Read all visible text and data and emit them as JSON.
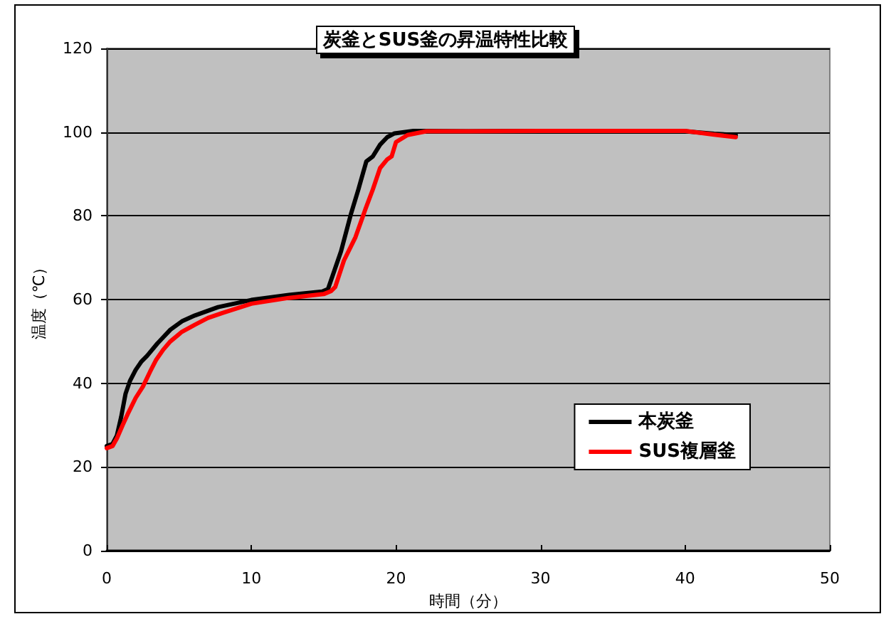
{
  "chart_data": {
    "type": "line",
    "title": "炭釜とSUS釜の昇温特性比較",
    "xlabel": "時間（分）",
    "ylabel": "温度（℃）",
    "series": [
      {
        "name": "本炭釜",
        "color": "#000000",
        "x": [
          0,
          0.4,
          0.7,
          1.0,
          1.3,
          1.6,
          2.0,
          2.4,
          2.8,
          3.5,
          4.4,
          5.2,
          6.1,
          7.7,
          10,
          12.6,
          14.9,
          15.3,
          15.75,
          16.2,
          16.9,
          17.4,
          17.95,
          18.4,
          18.9,
          19.4,
          19.9,
          21.2,
          25,
          30,
          35,
          40,
          42,
          43.5
        ],
        "values": [
          25,
          25.5,
          27.5,
          32,
          37.5,
          40.5,
          43.2,
          45.2,
          46.6,
          49.5,
          52.8,
          54.8,
          56.2,
          58.2,
          59.9,
          61.1,
          61.9,
          62.5,
          67,
          71.5,
          80.6,
          86.3,
          93,
          94.2,
          97,
          98.8,
          99.7,
          100.3,
          100.2,
          100.3,
          100.3,
          100.2,
          99.6,
          99.3
        ]
      },
      {
        "name": "SUS複層釜",
        "color": "#ff0000",
        "x": [
          0,
          0.4,
          0.7,
          1.1,
          1.5,
          2.0,
          2.5,
          3.0,
          3.4,
          3.9,
          4.4,
          5.2,
          6.1,
          7,
          8,
          10,
          12.6,
          15,
          15.5,
          15.8,
          16.4,
          17.2,
          17.9,
          18.4,
          18.9,
          19.4,
          19.7,
          20,
          20.8,
          22.1,
          25,
          30,
          35,
          40,
          42,
          43.5
        ],
        "values": [
          24.5,
          25,
          26.8,
          30,
          33,
          36.5,
          39.2,
          42.8,
          45.5,
          48,
          50,
          52.3,
          54,
          55.6,
          56.8,
          59,
          60.4,
          61.3,
          62,
          63,
          69.3,
          74.9,
          81.7,
          86.3,
          91.4,
          93.5,
          94.2,
          97.6,
          99.3,
          100.2,
          100.2,
          100.3,
          100.3,
          100.3,
          99.4,
          98.8
        ]
      }
    ],
    "xlim": [
      0,
      50
    ],
    "xticks": [
      0,
      10,
      20,
      30,
      40,
      50
    ],
    "ylim": [
      0,
      120
    ],
    "yticks": [
      0,
      20,
      40,
      60,
      80,
      100,
      120
    ],
    "grid": "y",
    "legend": "bottom right",
    "marker": "none",
    "line_style": "solid"
  }
}
